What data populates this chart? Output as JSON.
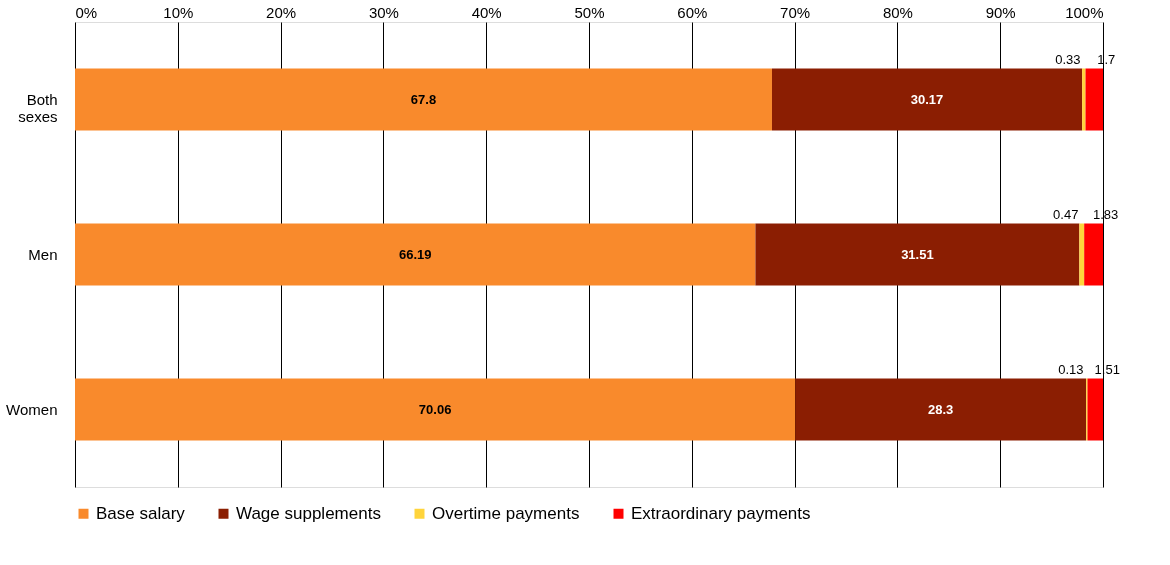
{
  "chart_data": {
    "type": "bar",
    "orientation": "horizontal",
    "stacked": true,
    "data_labels": true,
    "grid": "x",
    "legend": "bottom",
    "categories": [
      "Both sexes",
      "Men",
      "Women"
    ],
    "series": [
      {
        "name": "Base salary",
        "color": "#f98a2c",
        "values": [
          67.8,
          66.19,
          70.06
        ]
      },
      {
        "name": "Wage supplements",
        "color": "#8b1e02",
        "values": [
          30.17,
          31.51,
          28.3
        ]
      },
      {
        "name": "Overtime payments",
        "color": "#ffd43b",
        "values": [
          0.33,
          0.47,
          0.13
        ]
      },
      {
        "name": "Extraordinary payments",
        "color": "#ff0000",
        "values": [
          1.7,
          1.83,
          1.51
        ]
      }
    ],
    "xlim": [
      0,
      100
    ],
    "xticks": [
      {
        "value": 0,
        "label": "0%"
      },
      {
        "value": 10,
        "label": "10%"
      },
      {
        "value": 20,
        "label": "20%"
      },
      {
        "value": 30,
        "label": "30%"
      },
      {
        "value": 40,
        "label": "40%"
      },
      {
        "value": 50,
        "label": "50%"
      },
      {
        "value": 60,
        "label": "60%"
      },
      {
        "value": 70,
        "label": "70%"
      },
      {
        "value": 80,
        "label": "80%"
      },
      {
        "value": 90,
        "label": "90%"
      },
      {
        "value": 100,
        "label": "100%"
      }
    ]
  }
}
